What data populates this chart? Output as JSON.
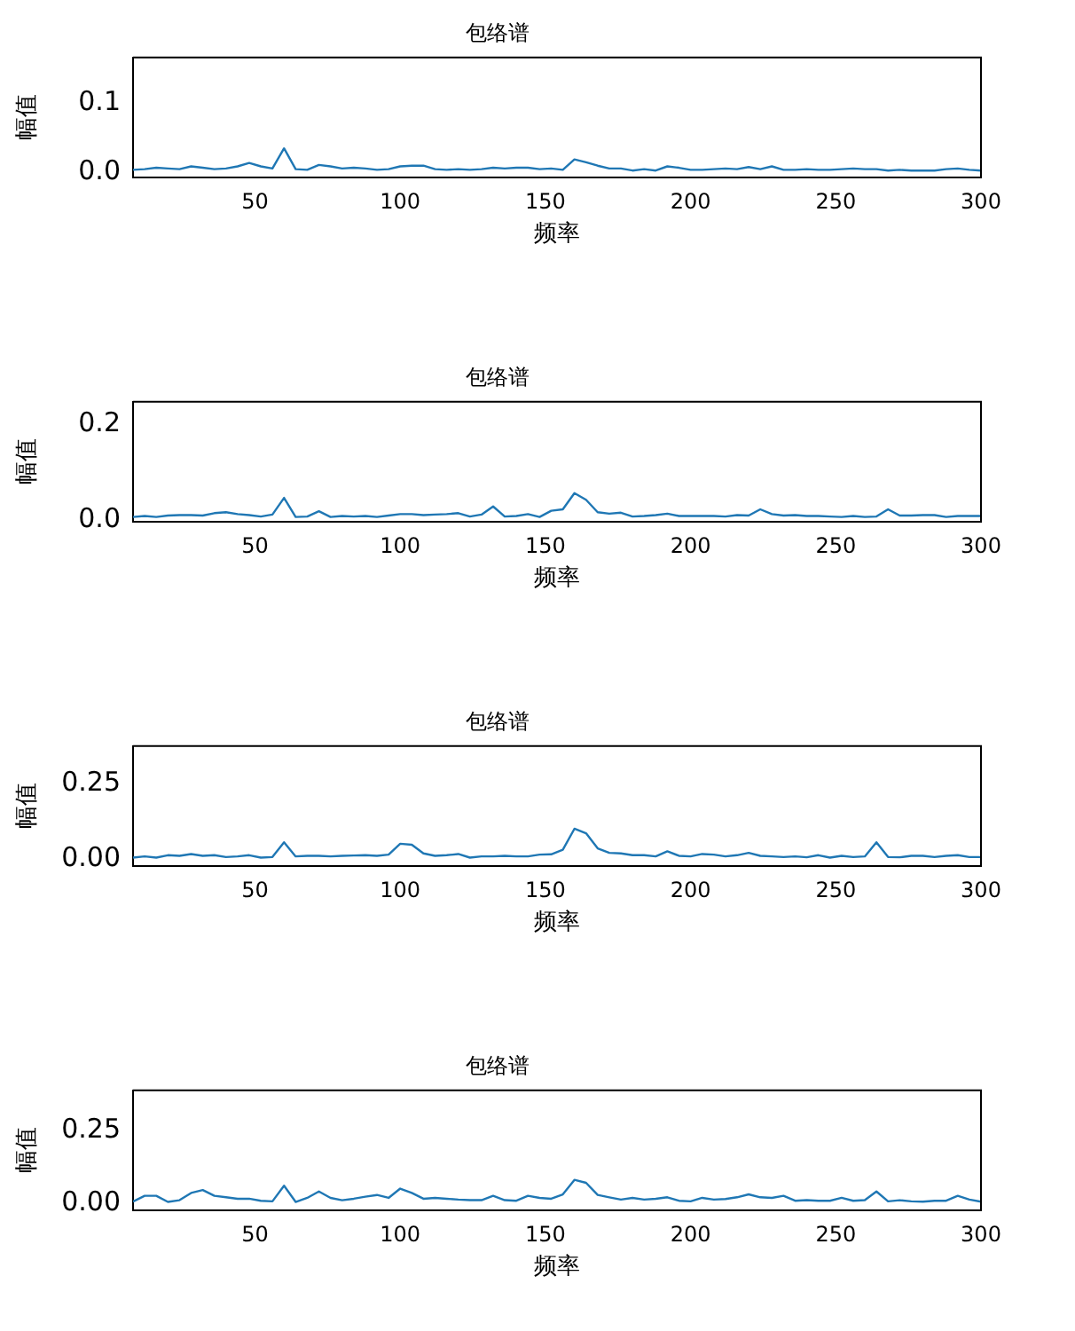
{
  "chart_data": [
    {
      "type": "line",
      "title": "包络谱",
      "xlabel": "频率",
      "ylabel": "幅值",
      "xlim": [
        8,
        300
      ],
      "xticks": [
        50,
        100,
        150,
        200,
        250,
        300
      ],
      "ylim": [
        -0.007,
        0.166
      ],
      "x": [
        8,
        12,
        16,
        20,
        24,
        28,
        32,
        36,
        40,
        44,
        48,
        52,
        56,
        60,
        64,
        68,
        72,
        76,
        80,
        84,
        88,
        92,
        96,
        100,
        104,
        108,
        112,
        116,
        120,
        124,
        128,
        132,
        136,
        140,
        144,
        148,
        152,
        156,
        160,
        164,
        168,
        172,
        176,
        180,
        184,
        188,
        192,
        196,
        200,
        204,
        208,
        212,
        216,
        220,
        224,
        228,
        232,
        236,
        240,
        244,
        248,
        252,
        256,
        260,
        264,
        268,
        272,
        276,
        280,
        284,
        288,
        292,
        296,
        300
      ],
      "yticks": [
        {
          "value": 0,
          "label": "0.0"
        },
        {
          "value": 0.1,
          "label": "0.1"
        }
      ],
      "series": [
        {
          "color": "#1f77b4",
          "values": [
            0.004,
            0.005,
            0.007,
            0.006,
            0.005,
            0.009,
            0.007,
            0.005,
            0.006,
            0.009,
            0.014,
            0.009,
            0.006,
            0.035,
            0.005,
            0.004,
            0.011,
            0.009,
            0.006,
            0.007,
            0.006,
            0.004,
            0.005,
            0.009,
            0.01,
            0.01,
            0.005,
            0.004,
            0.005,
            0.004,
            0.005,
            0.007,
            0.006,
            0.007,
            0.007,
            0.005,
            0.006,
            0.004,
            0.019,
            0.015,
            0.01,
            0.006,
            0.006,
            0.003,
            0.005,
            0.003,
            0.009,
            0.007,
            0.004,
            0.004,
            0.005,
            0.006,
            0.005,
            0.008,
            0.005,
            0.009,
            0.004,
            0.004,
            0.005,
            0.004,
            0.004,
            0.005,
            0.006,
            0.005,
            0.005,
            0.003,
            0.004,
            0.003,
            0.003,
            0.003,
            0.005,
            0.006,
            0.004,
            0.003
          ]
        }
      ]
    },
    {
      "type": "line",
      "title": "包络谱",
      "xlabel": "频率",
      "ylabel": "幅值",
      "xlim": [
        8,
        300
      ],
      "xticks": [
        50,
        100,
        150,
        200,
        250,
        300
      ],
      "ylim": [
        -0.004,
        0.247
      ],
      "x": [
        8,
        12,
        16,
        20,
        24,
        28,
        32,
        36,
        40,
        44,
        48,
        52,
        56,
        60,
        64,
        68,
        72,
        76,
        80,
        84,
        88,
        92,
        96,
        100,
        104,
        108,
        112,
        116,
        120,
        124,
        128,
        132,
        136,
        140,
        144,
        148,
        152,
        156,
        160,
        164,
        168,
        172,
        176,
        180,
        184,
        188,
        192,
        196,
        200,
        204,
        208,
        212,
        216,
        220,
        224,
        228,
        232,
        236,
        240,
        244,
        248,
        252,
        256,
        260,
        264,
        268,
        272,
        276,
        280,
        284,
        288,
        292,
        296,
        300
      ],
      "yticks": [
        {
          "value": 0,
          "label": "0.0"
        },
        {
          "value": 0.2,
          "label": "0.2"
        }
      ],
      "series": [
        {
          "color": "#1f77b4",
          "values": [
            0.006,
            0.008,
            0.006,
            0.009,
            0.01,
            0.01,
            0.009,
            0.014,
            0.016,
            0.012,
            0.01,
            0.007,
            0.011,
            0.046,
            0.006,
            0.007,
            0.018,
            0.006,
            0.008,
            0.007,
            0.008,
            0.006,
            0.009,
            0.012,
            0.012,
            0.01,
            0.011,
            0.012,
            0.014,
            0.007,
            0.011,
            0.028,
            0.007,
            0.008,
            0.012,
            0.006,
            0.019,
            0.022,
            0.056,
            0.042,
            0.016,
            0.013,
            0.015,
            0.007,
            0.008,
            0.01,
            0.013,
            0.008,
            0.008,
            0.008,
            0.008,
            0.007,
            0.01,
            0.009,
            0.022,
            0.012,
            0.009,
            0.01,
            0.008,
            0.008,
            0.007,
            0.006,
            0.008,
            0.006,
            0.007,
            0.022,
            0.009,
            0.009,
            0.01,
            0.01,
            0.006,
            0.008,
            0.008,
            0.008
          ]
        }
      ]
    },
    {
      "type": "line",
      "title": "包络谱",
      "xlabel": "频率",
      "ylabel": "幅值",
      "xlim": [
        8,
        300
      ],
      "xticks": [
        50,
        100,
        150,
        200,
        250,
        300
      ],
      "ylim": [
        -0.024,
        0.375
      ],
      "x": [
        8,
        12,
        16,
        20,
        24,
        28,
        32,
        36,
        40,
        44,
        48,
        52,
        56,
        60,
        64,
        68,
        72,
        76,
        80,
        84,
        88,
        92,
        96,
        100,
        104,
        108,
        112,
        116,
        120,
        124,
        128,
        132,
        136,
        140,
        144,
        148,
        152,
        156,
        160,
        164,
        168,
        172,
        176,
        180,
        184,
        188,
        192,
        196,
        200,
        204,
        208,
        212,
        216,
        220,
        224,
        228,
        232,
        236,
        240,
        244,
        248,
        252,
        256,
        260,
        264,
        268,
        272,
        276,
        280,
        284,
        288,
        292,
        296,
        300
      ],
      "yticks": [
        {
          "value": 0,
          "label": "0.00"
        },
        {
          "value": 0.25,
          "label": "0.25"
        }
      ],
      "series": [
        {
          "color": "#1f77b4",
          "values": [
            0.004,
            0.008,
            0.004,
            0.012,
            0.01,
            0.016,
            0.01,
            0.012,
            0.006,
            0.008,
            0.012,
            0.004,
            0.006,
            0.055,
            0.008,
            0.01,
            0.01,
            0.008,
            0.01,
            0.011,
            0.012,
            0.01,
            0.014,
            0.05,
            0.047,
            0.018,
            0.01,
            0.012,
            0.016,
            0.004,
            0.008,
            0.008,
            0.01,
            0.008,
            0.008,
            0.014,
            0.015,
            0.03,
            0.1,
            0.085,
            0.035,
            0.02,
            0.018,
            0.012,
            0.012,
            0.008,
            0.025,
            0.01,
            0.008,
            0.016,
            0.014,
            0.008,
            0.012,
            0.02,
            0.01,
            0.008,
            0.006,
            0.008,
            0.005,
            0.012,
            0.004,
            0.01,
            0.006,
            0.008,
            0.055,
            0.006,
            0.005,
            0.01,
            0.01,
            0.006,
            0.01,
            0.012,
            0.006,
            0.006
          ]
        }
      ]
    },
    {
      "type": "line",
      "title": "包络谱",
      "xlabel": "频率",
      "ylabel": "幅值",
      "xlim": [
        8,
        300
      ],
      "xticks": [
        50,
        100,
        150,
        200,
        250,
        300
      ],
      "ylim": [
        -0.025,
        0.389
      ],
      "x": [
        8,
        12,
        16,
        20,
        24,
        28,
        32,
        36,
        40,
        44,
        48,
        52,
        56,
        60,
        64,
        68,
        72,
        76,
        80,
        84,
        88,
        92,
        96,
        100,
        104,
        108,
        112,
        116,
        120,
        124,
        128,
        132,
        136,
        140,
        144,
        148,
        152,
        156,
        160,
        164,
        168,
        172,
        176,
        180,
        184,
        188,
        192,
        196,
        200,
        204,
        208,
        212,
        216,
        220,
        224,
        228,
        232,
        236,
        240,
        244,
        248,
        252,
        256,
        260,
        264,
        268,
        272,
        276,
        280,
        284,
        288,
        292,
        296,
        300
      ],
      "yticks": [
        {
          "value": 0,
          "label": "0.00"
        },
        {
          "value": 0.25,
          "label": "0.25"
        }
      ],
      "series": [
        {
          "color": "#1f77b4",
          "values": [
            0.005,
            0.025,
            0.025,
            0.004,
            0.01,
            0.035,
            0.045,
            0.025,
            0.02,
            0.015,
            0.015,
            0.008,
            0.006,
            0.06,
            0.004,
            0.018,
            0.04,
            0.018,
            0.01,
            0.015,
            0.022,
            0.028,
            0.018,
            0.05,
            0.035,
            0.015,
            0.018,
            0.015,
            0.012,
            0.01,
            0.01,
            0.025,
            0.01,
            0.008,
            0.025,
            0.018,
            0.015,
            0.03,
            0.08,
            0.07,
            0.028,
            0.02,
            0.012,
            0.018,
            0.012,
            0.015,
            0.02,
            0.008,
            0.006,
            0.018,
            0.012,
            0.014,
            0.02,
            0.03,
            0.02,
            0.018,
            0.025,
            0.008,
            0.01,
            0.008,
            0.008,
            0.018,
            0.008,
            0.01,
            0.04,
            0.006,
            0.01,
            0.006,
            0.005,
            0.008,
            0.008,
            0.025,
            0.012,
            0.005
          ]
        }
      ]
    }
  ]
}
